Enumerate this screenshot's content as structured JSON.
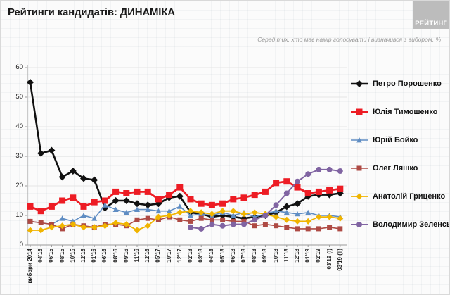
{
  "header": {
    "title": "Рейтинги кандидатів: ДИНАМІКА",
    "logo": "РЕЙТИНГ",
    "subtitle": "Серед тих, хто має намір голосувати і визначився з вибором, %"
  },
  "chart_data": {
    "type": "line",
    "title": "Рейтинги кандидатів: ДИНАМІКА",
    "subtitle": "Серед тих, хто має намір голосувати і визначився з вибором, %",
    "categories": [
      "вибори 2014",
      "04'15",
      "06'15",
      "08'15",
      "10'15",
      "12'15",
      "01'16",
      "06'16",
      "08'16",
      "09'16",
      "11'16",
      "12'16",
      "05'17",
      "10'17",
      "12'17",
      "02'18",
      "03'18",
      "04'18",
      "05'18",
      "06'18",
      "07'18",
      "08'18",
      "09'18",
      "10'18",
      "11'18",
      "12'18",
      "01'19",
      "02'19",
      "03'19 (I)",
      "03'19 (II)"
    ],
    "ylim": [
      0,
      60
    ],
    "yticks": [
      0,
      10,
      20,
      30,
      40,
      50,
      60
    ],
    "grid": true,
    "legend_position": "right",
    "xlabel": "",
    "ylabel": "%",
    "series": [
      {
        "name": "Петро Порошенко",
        "color": "#111111",
        "marker": "diamond",
        "values": [
          55,
          31,
          32,
          23,
          25,
          22.5,
          22,
          12.5,
          15,
          15,
          14,
          13.5,
          14,
          16,
          16.5,
          11,
          10.5,
          9.5,
          10,
          9.5,
          9,
          9.5,
          10,
          11,
          13,
          14,
          16.5,
          17,
          17,
          17.5
        ]
      },
      {
        "name": "Юлія Тимошенко",
        "color": "#ed1c24",
        "marker": "square",
        "values": [
          13,
          11.5,
          13,
          15,
          16,
          13,
          14.5,
          15,
          18,
          17.5,
          18,
          18,
          15.5,
          17,
          19.5,
          15.5,
          14,
          13.5,
          14,
          15.5,
          16,
          17,
          18,
          21,
          21.5,
          19.5,
          17.5,
          18,
          18.5,
          19
        ]
      },
      {
        "name": "Юрій Бойко",
        "color": "#5f8dc3",
        "marker": "triangle",
        "values": [
          8,
          7.5,
          7,
          9,
          8,
          10,
          9,
          13.5,
          12,
          11,
          12,
          12,
          11.5,
          11.5,
          13,
          10,
          10.5,
          10,
          11,
          10,
          11,
          9.5,
          10.5,
          11.5,
          11,
          10.5,
          11,
          10,
          10,
          9.5
        ]
      },
      {
        "name": "Олег Ляшко",
        "color": "#ae4a44",
        "marker": "square",
        "values": [
          8,
          7.5,
          7,
          5.5,
          7,
          6.5,
          6,
          7,
          7,
          6.5,
          8.5,
          9,
          8.5,
          9.5,
          8.5,
          8,
          9,
          8.5,
          8.5,
          8,
          8,
          6.5,
          7,
          6.5,
          6,
          5.5,
          5.5,
          5.5,
          6,
          5.5
        ]
      },
      {
        "name": "Анатолій Гриценко",
        "color": "#f0b400",
        "marker": "diamond",
        "values": [
          5,
          5,
          6,
          6.5,
          7,
          6,
          6,
          6.5,
          7.5,
          7,
          5,
          6.5,
          9.5,
          10,
          11,
          11.5,
          11,
          10.5,
          11.5,
          11.5,
          10.5,
          11,
          10.5,
          9.5,
          8.5,
          8,
          8,
          9.5,
          9.5,
          9
        ]
      },
      {
        "name": "Володимир Зеленський",
        "color": "#8064a2",
        "marker": "circle",
        "values": [
          null,
          null,
          null,
          null,
          null,
          null,
          null,
          null,
          null,
          null,
          null,
          null,
          null,
          null,
          null,
          6,
          5.5,
          7,
          6.5,
          7,
          7,
          8.5,
          10,
          13.5,
          17.5,
          21.5,
          24,
          25.5,
          25.5,
          25
        ]
      }
    ]
  }
}
